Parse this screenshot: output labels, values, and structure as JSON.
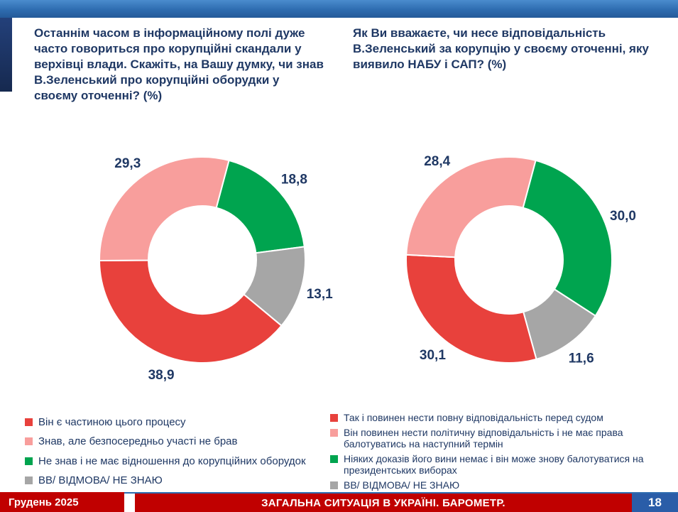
{
  "slide": {
    "colors": {
      "title_navy": "#1F3864",
      "topbar_blue": "#2e6cb0",
      "footer_red": "#C00000",
      "page_box_blue": "#2A5DA8"
    },
    "footer": {
      "date": "Грудень 2025",
      "title": "ЗАГАЛЬНА СИТУАЦІЯ В УКРАЇНІ. БАРОМЕТР.",
      "page_number": "18"
    }
  },
  "chart_data": [
    {
      "type": "donut",
      "title": "Останнім часом в інформаційному полі дуже часто говориться про корупційні скандали у верхівці влади. Скажіть, на Вашу думку, чи знав В.Зеленський про корупційні оборудки у своєму оточенні? (%)",
      "start_angle_deg": 15,
      "units": "%",
      "slices": [
        {
          "label": "Не знав і не має відношення до корупційних оборудок",
          "value": 18.8,
          "display": "18,8",
          "color": "#00A44F"
        },
        {
          "label": "ВВ/ ВІДМОВА/ НЕ ЗНАЮ",
          "value": 13.1,
          "display": "13,1",
          "color": "#A6A6A6"
        },
        {
          "label": "Він є частиною цього процесу",
          "value": 38.9,
          "display": "38,9",
          "color": "#E8413C"
        },
        {
          "label": "Знав, але безпосередньо участі не брав",
          "value": 29.3,
          "display": "29,3",
          "color": "#F89E9C"
        }
      ],
      "legend_position": "bottom",
      "legend": [
        {
          "text": "Він є частиною цього процесу",
          "color": "#E8413C"
        },
        {
          "text": "Знав, але безпосередньо участі не брав",
          "color": "#F89E9C"
        },
        {
          "text": "Не знав і не має відношення до корупційних оборудок",
          "color": "#00A44F"
        },
        {
          "text": "ВВ/ ВІДМОВА/ НЕ ЗНАЮ",
          "color": "#A6A6A6"
        }
      ]
    },
    {
      "type": "donut",
      "title": "Як Ви вважаєте, чи несе відповідальність В.Зеленський за корупцію у своєму оточенні, яку виявило НАБУ і САП? (%)",
      "start_angle_deg": 15,
      "units": "%",
      "slices": [
        {
          "label": "Ніяких доказів його вини немає і він може знову балотуватися на президентських виборах",
          "value": 30.0,
          "display": "30,0",
          "color": "#00A44F"
        },
        {
          "label": "ВВ/ ВІДМОВА/ НЕ ЗНАЮ",
          "value": 11.6,
          "display": "11,6",
          "color": "#A6A6A6"
        },
        {
          "label": "Так і повинен нести повну відповідальність перед судом",
          "value": 30.1,
          "display": "30,1",
          "color": "#E8413C"
        },
        {
          "label": "Він повинен нести політичну відповідальність і не має права балотуватись на наступний термін",
          "value": 28.4,
          "display": "28,4",
          "color": "#F89E9C"
        }
      ],
      "legend_position": "bottom",
      "legend": [
        {
          "text": "Так і повинен нести повну відповідальність перед судом",
          "color": "#E8413C"
        },
        {
          "text": "Він повинен нести політичну відповідальність і не має права балотуватись на наступний термін",
          "color": "#F89E9C"
        },
        {
          "text": "Ніяких доказів його вини немає і він може знову балотуватися на президентських виборах",
          "color": "#00A44F"
        },
        {
          "text": "ВВ/ ВІДМОВА/ НЕ ЗНАЮ",
          "color": "#A6A6A6"
        }
      ]
    }
  ]
}
